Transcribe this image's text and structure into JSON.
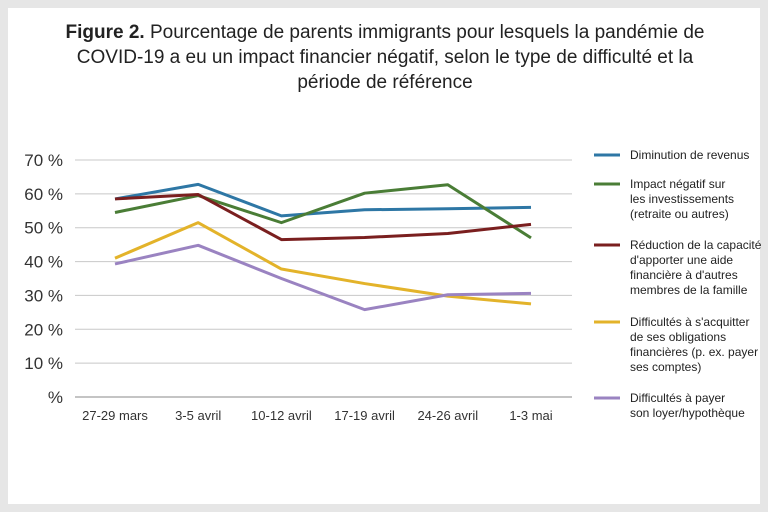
{
  "title": {
    "label": "Figure 2.",
    "text": "Pourcentage de parents immigrants pour lesquels la pandémie de COVID-19 a eu un impact financier négatif, selon le type de difficulté et la période de référence"
  },
  "chart_data": {
    "type": "line",
    "categories": [
      "27-29 mars",
      "3-5 avril",
      "10-12 avril",
      "17-19 avril",
      "24-26 avril",
      "1-3 mai"
    ],
    "y_ticks": [
      "%",
      "10 %",
      "20 %",
      "30 %",
      "40 %",
      "50 %",
      "60 %",
      "70 %"
    ],
    "ylim": [
      0,
      70
    ],
    "grid": true,
    "legend_position": "right",
    "series": [
      {
        "name": "Diminution de revenus",
        "color": "#2e77a5",
        "values": [
          58.5,
          62.8,
          53.5,
          55.3,
          55.6,
          56.0
        ]
      },
      {
        "name": "Impact négatif sur les investissements (retraite ou autres)",
        "color": "#4a7d36",
        "values": [
          54.5,
          59.5,
          51.5,
          60.2,
          62.7,
          47.0
        ]
      },
      {
        "name": "Réduction de la capacité d'apporter une aide financière à d'autres membres de la famille",
        "color": "#7a1f1f",
        "values": [
          58.5,
          59.8,
          46.5,
          47.1,
          48.3,
          51.0
        ]
      },
      {
        "name": "Difficultés à s'acquitter de ses obligations financières (p. ex. payer ses comptes)",
        "color": "#e3b32a",
        "values": [
          41.0,
          51.5,
          37.8,
          33.5,
          29.8,
          27.5
        ]
      },
      {
        "name": "Difficultés à payer son loyer/hypothèque",
        "color": "#9a83c1",
        "values": [
          39.3,
          44.8,
          35.0,
          25.8,
          30.2,
          30.6
        ]
      }
    ],
    "legend_lines": [
      [
        "Diminution de revenus"
      ],
      [
        "Impact négatif sur",
        "les investissements",
        "(retraite ou autres)"
      ],
      [
        "Réduction de la capacité",
        "d'apporter une aide",
        "financière à d'autres",
        "membres de la famille"
      ],
      [
        "Difficultés à s'acquitter",
        "de ses obligations",
        "financières (p. ex. payer",
        "ses comptes)"
      ],
      [
        "Difficultés à payer",
        "son loyer/hypothèque"
      ]
    ]
  }
}
